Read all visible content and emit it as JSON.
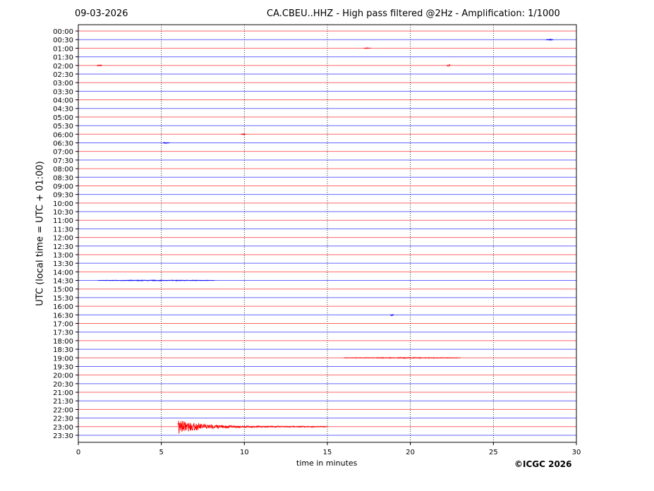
{
  "header": {
    "date": "09-03-2026",
    "title": "CA.CBEU..HHZ - High pass filtered @2Hz - Amplification: 1/1000"
  },
  "footer": {
    "copyright": "©ICGC 2026"
  },
  "chart_data": {
    "type": "line",
    "title": "CA.CBEU..HHZ - High pass filtered @2Hz - Amplification: 1/1000",
    "xlabel": "time in minutes",
    "ylabel": "UTC (local time = UTC + 01:00)",
    "xlim": [
      0,
      30
    ],
    "xticks": [
      0,
      5,
      10,
      15,
      20,
      25,
      30
    ],
    "grid": "vertical dotted at x ticks",
    "trace_colors": [
      "#ff0000",
      "#0000ff"
    ],
    "rows": [
      "00:00",
      "00:30",
      "01:00",
      "01:30",
      "02:00",
      "02:30",
      "03:00",
      "03:30",
      "04:00",
      "04:30",
      "05:00",
      "05:30",
      "06:00",
      "06:30",
      "07:00",
      "07:30",
      "08:00",
      "08:30",
      "09:00",
      "09:30",
      "10:00",
      "10:30",
      "11:00",
      "11:30",
      "12:00",
      "12:30",
      "13:00",
      "13:30",
      "14:00",
      "14:30",
      "15:00",
      "15:30",
      "16:00",
      "16:30",
      "17:00",
      "17:30",
      "18:00",
      "18:30",
      "19:00",
      "19:30",
      "20:00",
      "20:30",
      "21:00",
      "21:30",
      "22:00",
      "22:30",
      "23:00",
      "23:30"
    ],
    "events": [
      {
        "row": "00:30",
        "minute": 28.2,
        "duration": 0.4,
        "amplitude": 1
      },
      {
        "row": "01:00",
        "minute": 17.2,
        "duration": 0.4,
        "amplitude": 0.8
      },
      {
        "row": "02:00",
        "minute": 1.1,
        "duration": 0.3,
        "amplitude": 1
      },
      {
        "row": "02:00",
        "minute": 22.2,
        "duration": 0.2,
        "amplitude": 1.5
      },
      {
        "row": "06:00",
        "minute": 9.8,
        "duration": 0.3,
        "amplitude": 0.6
      },
      {
        "row": "06:30",
        "minute": 5.1,
        "duration": 0.4,
        "amplitude": 0.8
      },
      {
        "row": "14:30",
        "minute": 1.2,
        "duration": 7,
        "amplitude": 0.6
      },
      {
        "row": "16:30",
        "minute": 18.8,
        "duration": 0.2,
        "amplitude": 1.2
      },
      {
        "row": "19:00",
        "minute": 16,
        "duration": 7,
        "amplitude": 0.6
      },
      {
        "row": "23:00",
        "minute": 6.0,
        "duration": 9,
        "amplitude": 9
      }
    ]
  }
}
